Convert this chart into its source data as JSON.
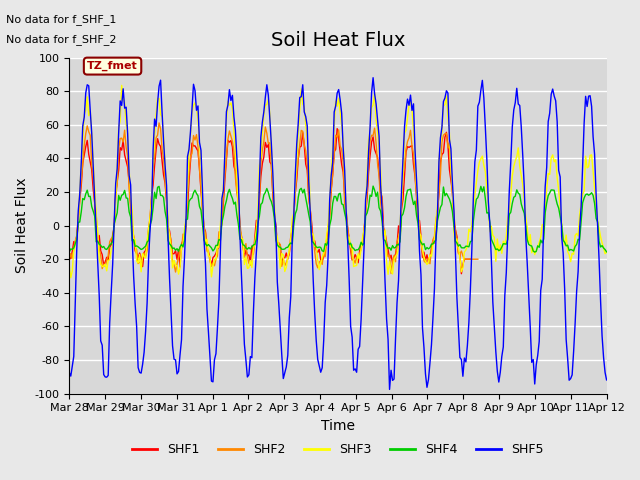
{
  "title": "Soil Heat Flux",
  "xlabel": "Time",
  "ylabel": "Soil Heat Flux",
  "ylim": [
    -100,
    100
  ],
  "yticks": [
    -100,
    -80,
    -60,
    -40,
    -20,
    0,
    20,
    40,
    60,
    80,
    100
  ],
  "background_color": "#e8e8e8",
  "plot_bg_color": "#d8d8d8",
  "grid_color": "white",
  "title_fontsize": 14,
  "axis_label_fontsize": 10,
  "tick_label_fontsize": 8,
  "note_line1": "No data for f_SHF_1",
  "note_line2": "No data for f_SHF_2",
  "tz_label": "TZ_fmet",
  "legend_labels": [
    "SHF1",
    "SHF2",
    "SHF3",
    "SHF4",
    "SHF5"
  ],
  "legend_colors": [
    "#ff0000",
    "#ff8800",
    "#ffff00",
    "#00cc00",
    "#0000ff"
  ],
  "x_tick_labels": [
    "Mar 28",
    "Mar 29",
    "Mar 30",
    "Mar 31",
    "Apr 1",
    "Apr 2",
    "Apr 3",
    "Apr 4",
    "Apr 5",
    "Apr 6",
    "Apr 7",
    "Apr 8",
    "Apr 9",
    "Apr 10",
    "Apr 11",
    "Apr 12"
  ],
  "num_days": 15,
  "seed": 42
}
